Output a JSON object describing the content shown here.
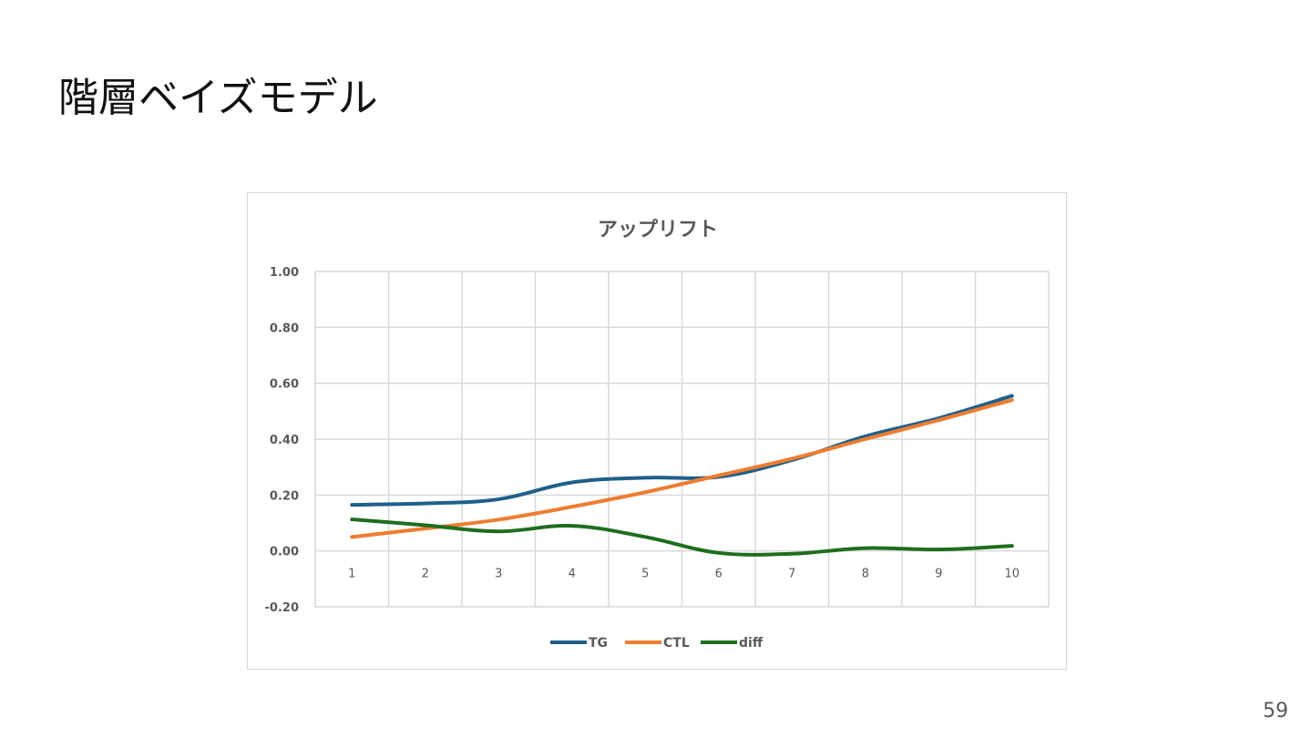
{
  "slide": {
    "title": "階層ベイズモデル",
    "page_number": "59"
  },
  "chart_data": {
    "type": "line",
    "title": "アップリフト",
    "xlabel": "",
    "ylabel": "",
    "categories": [
      "1",
      "2",
      "3",
      "4",
      "5",
      "6",
      "7",
      "8",
      "9",
      "10"
    ],
    "ylim": [
      -0.2,
      1.0
    ],
    "yticks": [
      "1.00",
      "0.80",
      "0.60",
      "0.40",
      "0.20",
      "0.00",
      "-0.20"
    ],
    "ytick_values": [
      1.0,
      0.8,
      0.6,
      0.4,
      0.2,
      0.0,
      -0.2
    ],
    "grid": true,
    "legend_position": "bottom",
    "series": [
      {
        "name": "TG",
        "color": "#1f5f8b",
        "values": [
          0.165,
          0.17,
          0.185,
          0.245,
          0.262,
          0.265,
          0.325,
          0.41,
          0.475,
          0.555
        ]
      },
      {
        "name": "CTL",
        "color": "#ed7d31",
        "values": [
          0.05,
          0.08,
          0.112,
          0.158,
          0.21,
          0.27,
          0.33,
          0.4,
          0.468,
          0.54
        ]
      },
      {
        "name": "diff",
        "color": "#1e6e1e",
        "values": [
          0.113,
          0.092,
          0.07,
          0.09,
          0.05,
          -0.007,
          -0.01,
          0.01,
          0.005,
          0.018
        ]
      }
    ]
  }
}
